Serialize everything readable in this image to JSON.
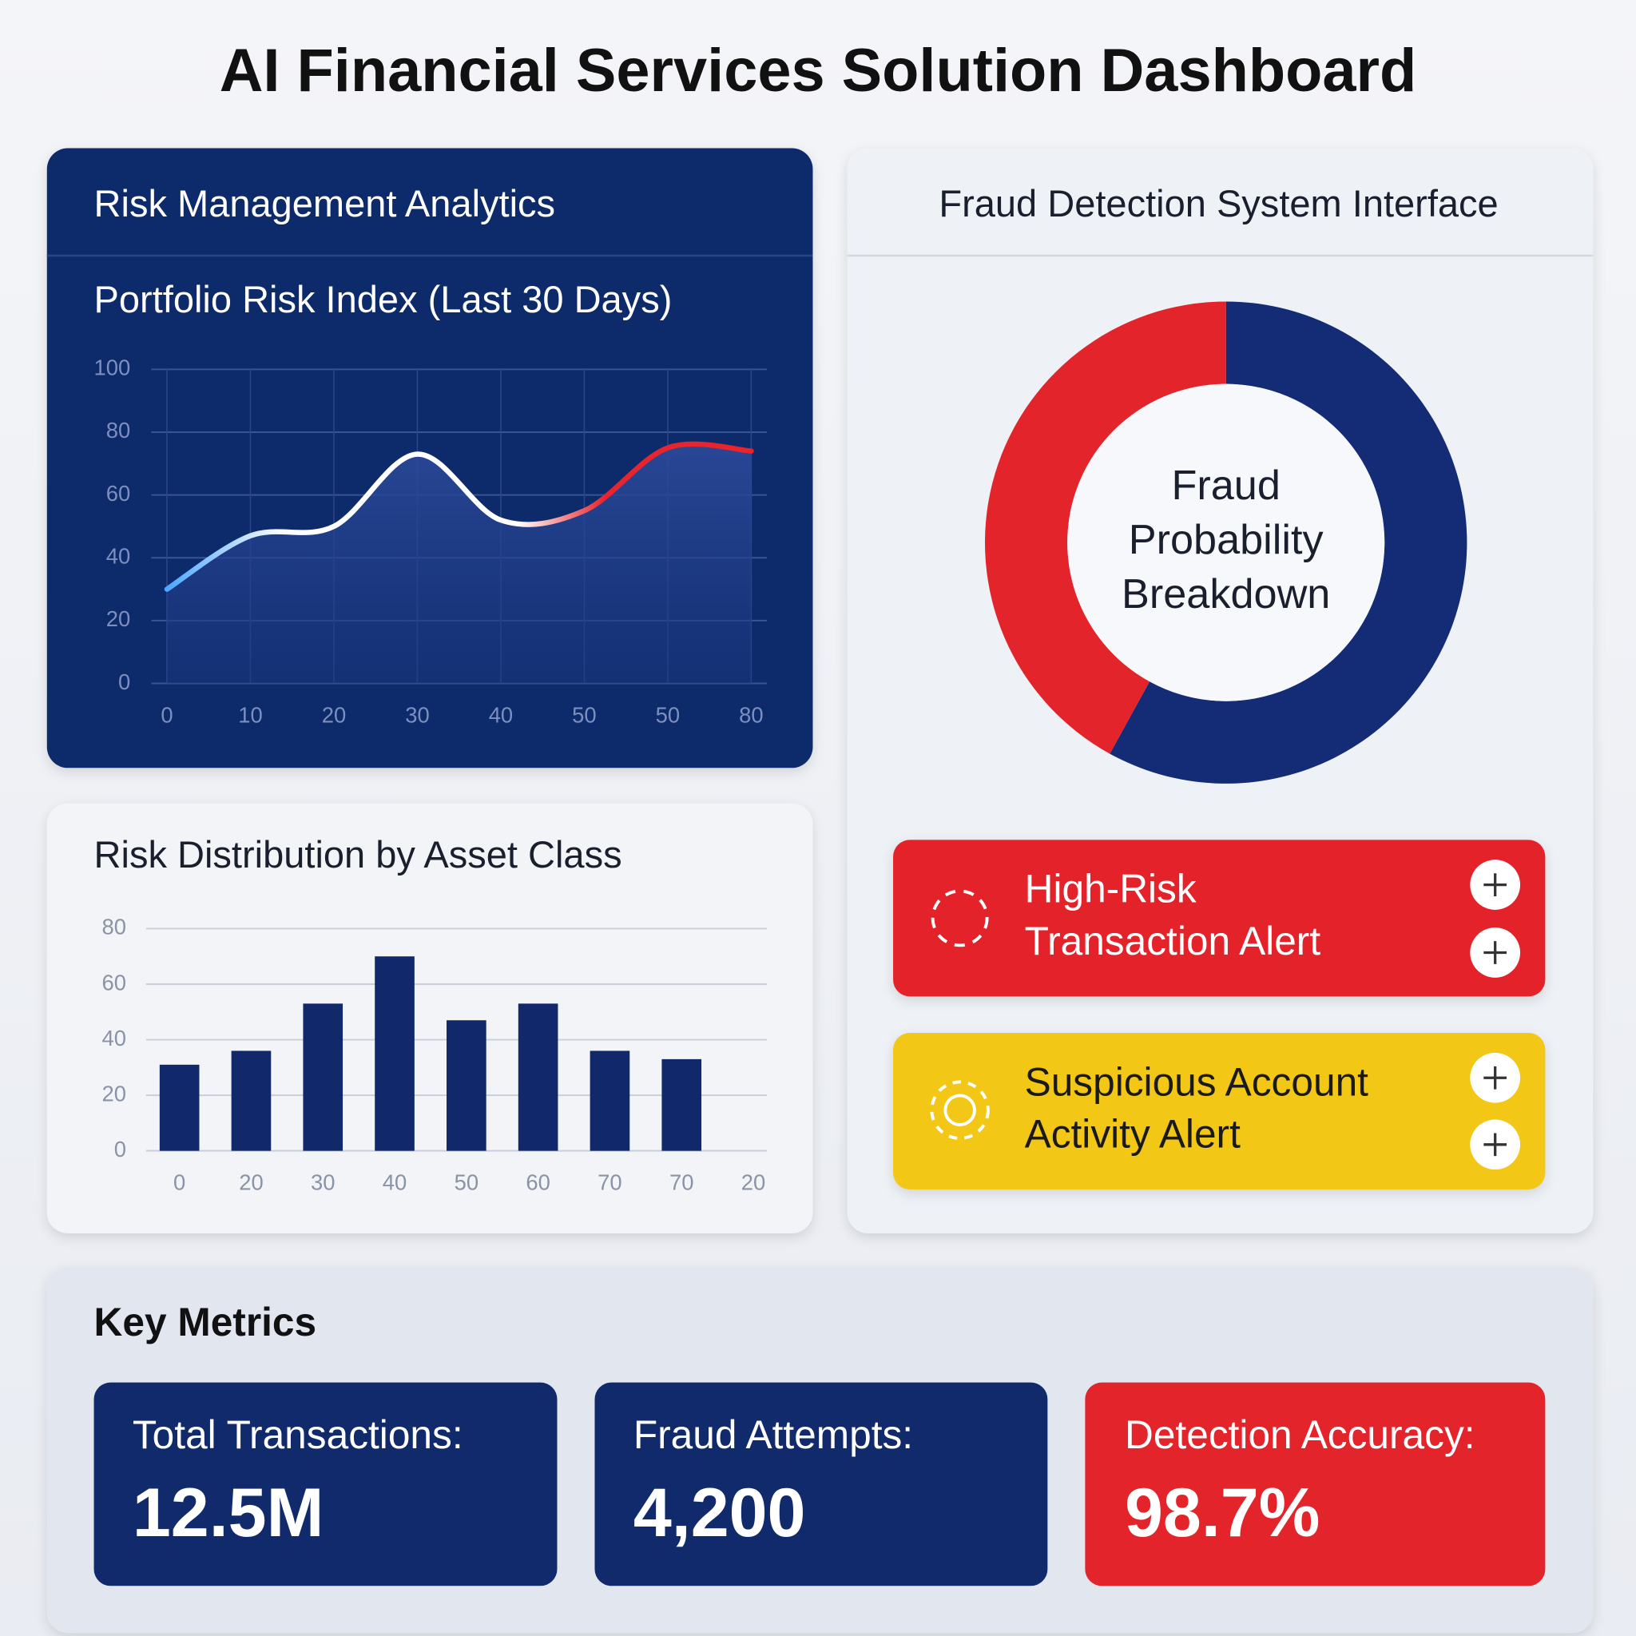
{
  "header": {
    "title": "AI Financial Services Solution Dashboard"
  },
  "panels": {
    "risk": "Risk Management Analytics",
    "fraud": "Fraud Detection System Interface",
    "metrics": "Key Metrics"
  },
  "chart_data": [
    {
      "type": "line",
      "title": "Portfolio Risk Index (Last 30 Days)",
      "categories": [
        "0",
        "10",
        "20",
        "30",
        "40",
        "50",
        "50",
        "80"
      ],
      "values": [
        30,
        47,
        50,
        73,
        52,
        55,
        75,
        74
      ],
      "line_colors": [
        "#4da6ff",
        "#ffffff",
        "#e8242c"
      ],
      "ylim": [
        0,
        100
      ],
      "yticks": [
        0,
        20,
        40,
        60,
        80,
        100
      ],
      "grid": true
    },
    {
      "type": "bar",
      "title": "Risk Distribution by Asset Class",
      "categories": [
        "0",
        "20",
        "30",
        "40",
        "50",
        "60",
        "70",
        "70",
        "20"
      ],
      "values": [
        31,
        36,
        53,
        70,
        47,
        53,
        36,
        33,
        null
      ],
      "color": "#11296b",
      "ylim": [
        0,
        80
      ],
      "yticks": [
        0,
        20,
        40,
        60,
        80
      ],
      "grid": true
    },
    {
      "type": "pie",
      "title": [
        "Fraud",
        "Probability",
        "Breakdown"
      ],
      "values": [
        58,
        42
      ],
      "colors": [
        "#132c75",
        "#e3242b"
      ]
    }
  ],
  "alerts": [
    {
      "lines": [
        "High-Risk",
        "Transaction Alert"
      ]
    },
    {
      "lines": [
        "Suspicious Account",
        "Activity Alert"
      ]
    }
  ],
  "metrics": [
    {
      "label": "Total Transactions:",
      "value": "12.5M"
    },
    {
      "label": "Fraud Attempts:",
      "value": "4,200"
    },
    {
      "label": "Detection Accuracy:",
      "value": "98.7%"
    }
  ]
}
